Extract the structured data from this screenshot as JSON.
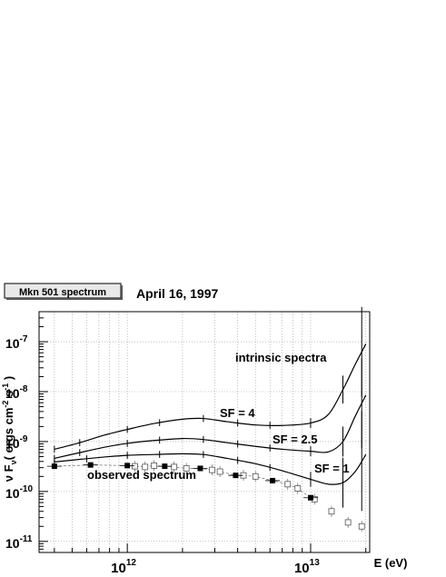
{
  "header": {
    "title_box": "Mkn 501 spectrum",
    "date": "April 16, 1997"
  },
  "chart_data": {
    "type": "scatter",
    "title": "Mkn 501 spectrum",
    "subtitle": "April 16, 1997",
    "xlabel": "E (eV)",
    "ylabel_parts": [
      "ν F",
      "ν",
      "( ergs cm",
      "-2",
      " s",
      "-1",
      " )"
    ],
    "x_scale": "log",
    "y_scale": "log",
    "xlim": [
      330000000000.0,
      21000000000000.0
    ],
    "ylim": [
      6e-12,
      4e-07
    ],
    "grid": true,
    "x_tick_labels": [
      {
        "value": 1000000000000.0,
        "base": "10",
        "exp": "12"
      },
      {
        "value": 10000000000000.0,
        "base": "10",
        "exp": "13"
      }
    ],
    "y_tick_labels": [
      {
        "value": 1e-07,
        "base": "10",
        "exp": "-7"
      },
      {
        "value": 1e-08,
        "base": "10",
        "exp": "-8"
      },
      {
        "value": 1e-09,
        "base": "10",
        "exp": "-9"
      },
      {
        "value": 1e-10,
        "base": "10",
        "exp": "-10"
      },
      {
        "value": 1e-11,
        "base": "10",
        "exp": "-11"
      }
    ],
    "annotations": {
      "intrinsic": "intrinsic spectra",
      "sf4": "SF = 4",
      "sf25": "SF = 2.5",
      "sf1": "SF = 1",
      "observed": "observed spectrum"
    },
    "series": [
      {
        "label_key": "sf4",
        "style": "curve",
        "x": [
          400000000000.0,
          550000000000.0,
          750000000000.0,
          1000000000000.0,
          1400000000000.0,
          2000000000000.0,
          2600000000000.0,
          3500000000000.0,
          5000000000000.0,
          7000000000000.0,
          10000000000000.0,
          12500000000000.0,
          15000000000000.0,
          17500000000000.0,
          20000000000000.0
        ],
        "y": [
          7e-10,
          9.5e-10,
          1.35e-09,
          1.75e-09,
          2.3e-09,
          2.8e-09,
          2.9e-09,
          2.5e-09,
          2.15e-09,
          2.1e-09,
          2.35e-09,
          3.5e-09,
          1.1e-08,
          3.5e-08,
          9e-08
        ],
        "errbar_x": [
          400000000000.0,
          550000000000.0,
          1000000000000.0,
          1500000000000.0,
          2600000000000.0,
          4000000000000.0,
          6000000000000.0,
          10000000000000.0,
          15000000000000.0,
          19000000000000.0
        ],
        "errbar_halfspan": [
          0.07,
          0.07,
          0.07,
          0.07,
          0.07,
          0.07,
          0.07,
          0.1,
          0.28,
          0.9
        ]
      },
      {
        "label_key": "sf25",
        "style": "curve",
        "x": [
          400000000000.0,
          550000000000.0,
          750000000000.0,
          1000000000000.0,
          1400000000000.0,
          2000000000000.0,
          2600000000000.0,
          3500000000000.0,
          5000000000000.0,
          7000000000000.0,
          10000000000000.0,
          12500000000000.0,
          15000000000000.0,
          17500000000000.0,
          20000000000000.0
        ],
        "y": [
          4.6e-10,
          6e-10,
          7.7e-10,
          9.2e-10,
          1.05e-09,
          1.15e-09,
          1.1e-09,
          9.5e-10,
          8e-10,
          7e-10,
          6.4e-10,
          6.2e-10,
          1e-09,
          3.2e-09,
          8.5e-09
        ],
        "errbar_x": [
          400000000000.0,
          550000000000.0,
          1000000000000.0,
          1500000000000.0,
          2600000000000.0,
          4000000000000.0,
          6000000000000.0,
          10000000000000.0,
          15000000000000.0,
          19000000000000.0
        ],
        "errbar_halfspan": [
          0.07,
          0.07,
          0.07,
          0.07,
          0.07,
          0.07,
          0.07,
          0.1,
          0.3,
          0.9
        ]
      },
      {
        "label_key": "sf1",
        "style": "curve",
        "x": [
          400000000000.0,
          550000000000.0,
          750000000000.0,
          1000000000000.0,
          1400000000000.0,
          2000000000000.0,
          2600000000000.0,
          3500000000000.0,
          5000000000000.0,
          7000000000000.0,
          10000000000000.0,
          12500000000000.0,
          15000000000000.0,
          17500000000000.0,
          20000000000000.0
        ],
        "y": [
          3.9e-10,
          4.4e-10,
          4.9e-10,
          5.3e-10,
          5.5e-10,
          5.7e-10,
          5.5e-10,
          4.6e-10,
          3.6e-10,
          2.6e-10,
          1.75e-10,
          1.4e-10,
          1.5e-10,
          2.5e-10,
          5.5e-10
        ],
        "errbar_x": [
          400000000000.0,
          600000000000.0,
          1000000000000.0,
          1500000000000.0,
          2600000000000.0,
          4000000000000.0,
          6000000000000.0,
          10000000000000.0,
          15000000000000.0,
          19000000000000.0
        ],
        "errbar_halfspan": [
          0.07,
          0.07,
          0.07,
          0.07,
          0.07,
          0.07,
          0.07,
          0.15,
          0.5,
          1.0
        ]
      }
    ],
    "observed_filled": {
      "x": [
        400000000000.0,
        630000000000.0,
        1000000000000.0,
        1600000000000.0,
        2500000000000.0,
        3900000000000.0,
        6200000000000.0,
        10000000000000.0
      ],
      "y": [
        3.2e-10,
        3.4e-10,
        3.3e-10,
        3.2e-10,
        2.9e-10,
        2.1e-10,
        1.65e-10,
        7.5e-11
      ]
    },
    "observed_open": {
      "x": [
        1100000000000.0,
        1250000000000.0,
        1400000000000.0,
        1800000000000.0,
        2100000000000.0,
        2900000000000.0,
        3200000000000.0,
        4300000000000.0,
        5000000000000.0,
        7500000000000.0,
        8500000000000.0,
        10500000000000.0,
        13000000000000.0,
        16000000000000.0,
        19000000000000.0
      ],
      "y": [
        3.2e-10,
        3.1e-10,
        3.3e-10,
        3.1e-10,
        2.9e-10,
        2.7e-10,
        2.5e-10,
        2.1e-10,
        2e-10,
        1.4e-10,
        1.15e-10,
        7e-11,
        4e-11,
        2.4e-11,
        2e-11
      ]
    }
  }
}
